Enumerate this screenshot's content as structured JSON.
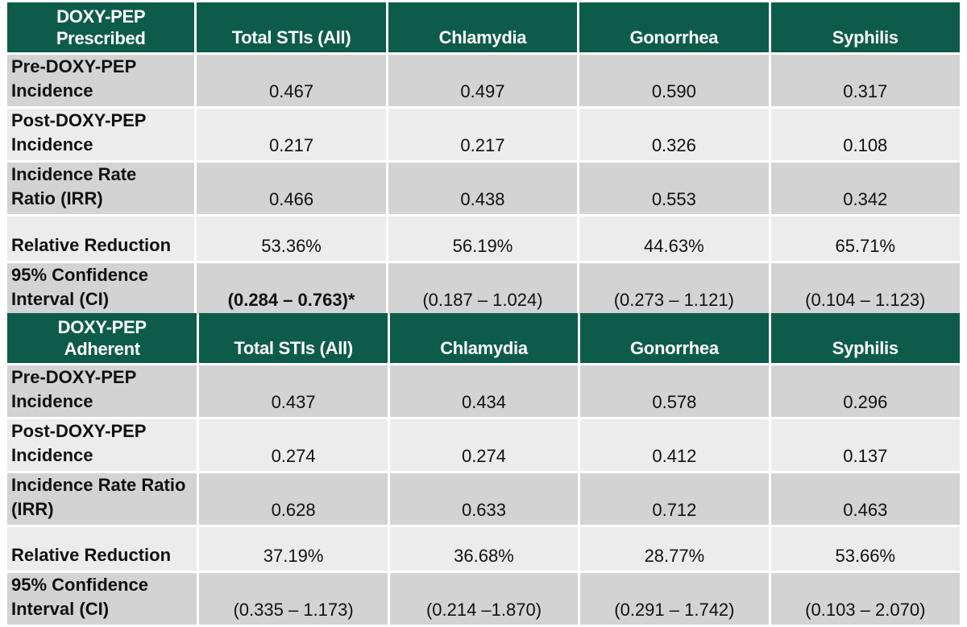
{
  "tables": [
    {
      "corner": [
        "DOXY-PEP",
        "Prescribed"
      ],
      "columns": [
        "Total STIs (All)",
        "Chlamydia",
        "Gonorrhea",
        "Syphilis"
      ],
      "rows": [
        {
          "label": [
            "Pre-DOXY-PEP",
            "Incidence"
          ],
          "values": [
            "0.467",
            "0.497",
            "0.590",
            "0.317"
          ]
        },
        {
          "label": [
            "Post-DOXY-PEP",
            "Incidence"
          ],
          "values": [
            "0.217",
            "0.217",
            "0.326",
            "0.108"
          ]
        },
        {
          "label": [
            "Incidence Rate",
            "Ratio (IRR)"
          ],
          "values": [
            "0.466",
            "0.438",
            "0.553",
            "0.342"
          ]
        },
        {
          "label": [
            "Relative Reduction"
          ],
          "values": [
            "53.36%",
            "56.19%",
            "44.63%",
            "65.71%"
          ]
        },
        {
          "label": [
            "95% Confidence",
            "Interval (CI)"
          ],
          "values": [
            "(0.284 – 0.763)*",
            "(0.187 – 1.024)",
            "(0.273 – 1.121)",
            "(0.104 – 1.123)"
          ]
        }
      ]
    },
    {
      "corner": [
        "DOXY-PEP",
        "Adherent"
      ],
      "columns": [
        "Total STIs (All)",
        "Chlamydia",
        "Gonorrhea",
        "Syphilis"
      ],
      "rows": [
        {
          "label": [
            "Pre-DOXY-PEP",
            "Incidence"
          ],
          "values": [
            "0.437",
            "0.434",
            "0.578",
            "0.296"
          ]
        },
        {
          "label": [
            "Post-DOXY-PEP",
            "Incidence"
          ],
          "values": [
            "0.274",
            "0.274",
            "0.412",
            "0.137"
          ]
        },
        {
          "label": [
            "Incidence Rate Ratio",
            "(IRR)"
          ],
          "values": [
            "0.628",
            "0.633",
            "0.712",
            "0.463"
          ]
        },
        {
          "label": [
            "Relative Reduction"
          ],
          "values": [
            "37.19%",
            "36.68%",
            "28.77%",
            "53.66%"
          ]
        },
        {
          "label": [
            "95% Confidence",
            "Interval (CI)"
          ],
          "values": [
            "(0.335 – 1.173)",
            "(0.214 –1.870)",
            "(0.291 – 1.742)",
            "(0.103 – 2.070)"
          ]
        }
      ]
    }
  ],
  "colors": {
    "header_bg": "#0d5c4a",
    "header_text": "#ffffff",
    "row_dark": "#d3d3d3",
    "row_light": "#ececec"
  }
}
